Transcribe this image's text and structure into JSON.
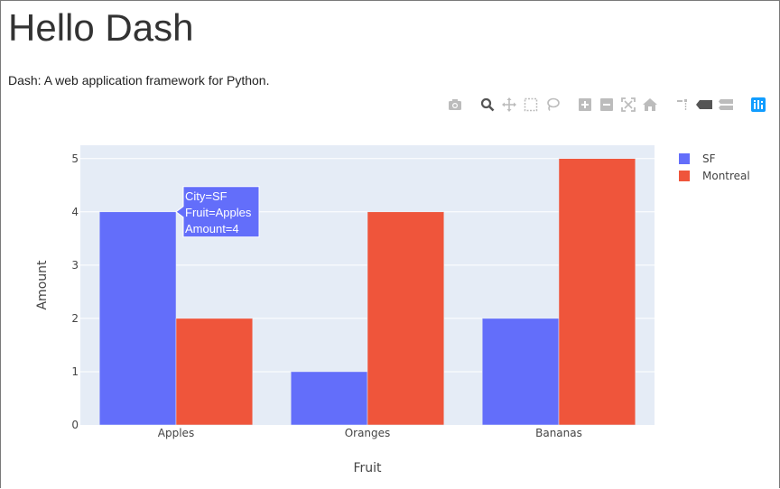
{
  "page": {
    "title": "Hello Dash",
    "subtitle": "Dash: A web application framework for Python."
  },
  "modebar": {
    "buttons": [
      {
        "name": "camera-icon",
        "title": "Download plot as a png"
      },
      {
        "name": "zoom-icon",
        "title": "Zoom"
      },
      {
        "name": "pan-icon",
        "title": "Pan"
      },
      {
        "name": "box-select-icon",
        "title": "Box Select"
      },
      {
        "name": "lasso-select-icon",
        "title": "Lasso Select"
      },
      {
        "name": "zoom-in-icon",
        "title": "Zoom in"
      },
      {
        "name": "zoom-out-icon",
        "title": "Zoom out"
      },
      {
        "name": "autoscale-icon",
        "title": "Autoscale"
      },
      {
        "name": "home-icon",
        "title": "Reset axes"
      },
      {
        "name": "spikelines-icon",
        "title": "Toggle Spike Lines"
      },
      {
        "name": "hover-closest-icon",
        "title": "Show closest data on hover"
      },
      {
        "name": "hover-compare-icon",
        "title": "Compare data on hover"
      },
      {
        "name": "plotly-logo-icon",
        "title": "Produced with Plotly"
      }
    ],
    "active": "zoom-icon"
  },
  "chart_data": {
    "type": "bar",
    "barmode": "group",
    "categories": [
      "Apples",
      "Oranges",
      "Bananas"
    ],
    "series": [
      {
        "name": "SF",
        "values": [
          4,
          1,
          2
        ],
        "color": "#636efa"
      },
      {
        "name": "Montreal",
        "values": [
          2,
          4,
          5
        ],
        "color": "#ef553b"
      }
    ],
    "xlabel": "Fruit",
    "ylabel": "Amount",
    "ylim": [
      0,
      5.25
    ],
    "yticks": [
      0,
      1,
      2,
      3,
      4,
      5
    ],
    "grid": true,
    "legend": "top-right",
    "plot_bgcolor": "#e5ecf6",
    "hover": {
      "series": 0,
      "category": 0,
      "lines": [
        "City=SF",
        "Fruit=Apples",
        "Amount=4"
      ]
    }
  }
}
